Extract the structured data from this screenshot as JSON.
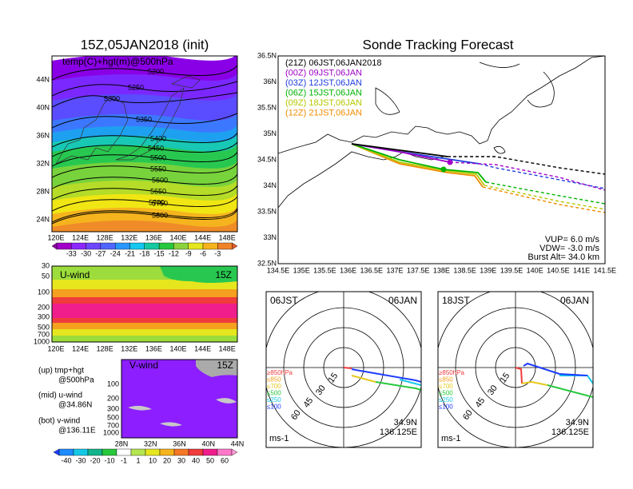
{
  "left_top": {
    "title": "15Z,05JAN2018 (init)",
    "label": "temp(C)+hgt(m)@500hPa",
    "yticks": [
      "44N",
      "40N",
      "36N",
      "32N",
      "28N",
      "24N"
    ],
    "xticks": [
      "120E",
      "124E",
      "128E",
      "132E",
      "136E",
      "140E",
      "144E",
      "148E"
    ],
    "contour_labels": [
      "5200",
      "5250",
      "5300",
      "5350",
      "5400",
      "5450",
      "5500",
      "5550",
      "5600",
      "5650",
      "5700",
      "5750",
      "5800"
    ],
    "colorbar_ticks": [
      "-33",
      "-30",
      "-27",
      "-24",
      "-21",
      "-18",
      "-15",
      "-12",
      "-9",
      "-6",
      "-3"
    ]
  },
  "left_mid": {
    "label": "U-wind",
    "time": "15Z",
    "yticks": [
      "30",
      "50",
      "100",
      "200",
      "300",
      "500",
      "700",
      "1000"
    ],
    "xticks": [
      "120E",
      "124E",
      "128E",
      "132E",
      "136E",
      "140E",
      "144E",
      "148E"
    ]
  },
  "left_bot": {
    "label": "V-wind",
    "time": "15Z",
    "yticks": [
      "100",
      "200",
      "300",
      "500",
      "700",
      "1000"
    ],
    "xticks": [
      "28N",
      "32N",
      "36N",
      "40N",
      "44N"
    ],
    "notes": [
      "(up) tmp+hgt",
      "@500hPa",
      "(mid) u-wind",
      "@34.86N",
      "(bot) v-wind",
      "@136.11E"
    ],
    "colorbar_ticks": [
      "-40",
      "-30",
      "-20",
      "-10",
      "-1",
      "1",
      "10",
      "20",
      "30",
      "40",
      "50",
      "60"
    ]
  },
  "track": {
    "title": "Sonde Tracking Forecast",
    "yticks": [
      "36.5N",
      "36N",
      "35.5N",
      "35N",
      "34.5N",
      "34N",
      "33.5N",
      "33N",
      "32.5N"
    ],
    "xticks": [
      "134.5E",
      "135E",
      "135.5E",
      "136E",
      "136.5E",
      "137E",
      "137.5E",
      "138E",
      "138.5E",
      "139E",
      "139.5E",
      "140E",
      "140.5E",
      "141E",
      "141.5E"
    ],
    "legend": [
      "(21Z) 06JST,06JAN2018",
      "(00Z) 09JST,06JAN",
      "(03Z) 12JST,06JAN",
      "(06Z) 15JST,06JAN",
      "(09Z) 18JST,06JAN",
      "(12Z) 21JST,06JAN"
    ],
    "params": [
      "VUP= 6.0 m/s",
      "VDW= -3.0 m/s",
      "Burst Alt= 34.0 km"
    ]
  },
  "hodographs": [
    {
      "time": "06JST",
      "date": "06JAN",
      "lat": "34.9N",
      "lon": "136.125E",
      "unit": "ms-1",
      "rings": [
        "15",
        "30",
        "45",
        "60"
      ],
      "levels": [
        "≥850hPa",
        "≤850",
        "≤700",
        "≤500",
        "≤250",
        "≤100"
      ]
    },
    {
      "time": "18JST",
      "date": "06JAN",
      "lat": "34.9N",
      "lon": "136.125E",
      "unit": "ms-1",
      "rings": [
        "15",
        "30",
        "45",
        "60"
      ],
      "levels": [
        "≥850hPa",
        "≤850",
        "≤700",
        "≤500",
        "≤250",
        "≤100"
      ]
    }
  ]
}
